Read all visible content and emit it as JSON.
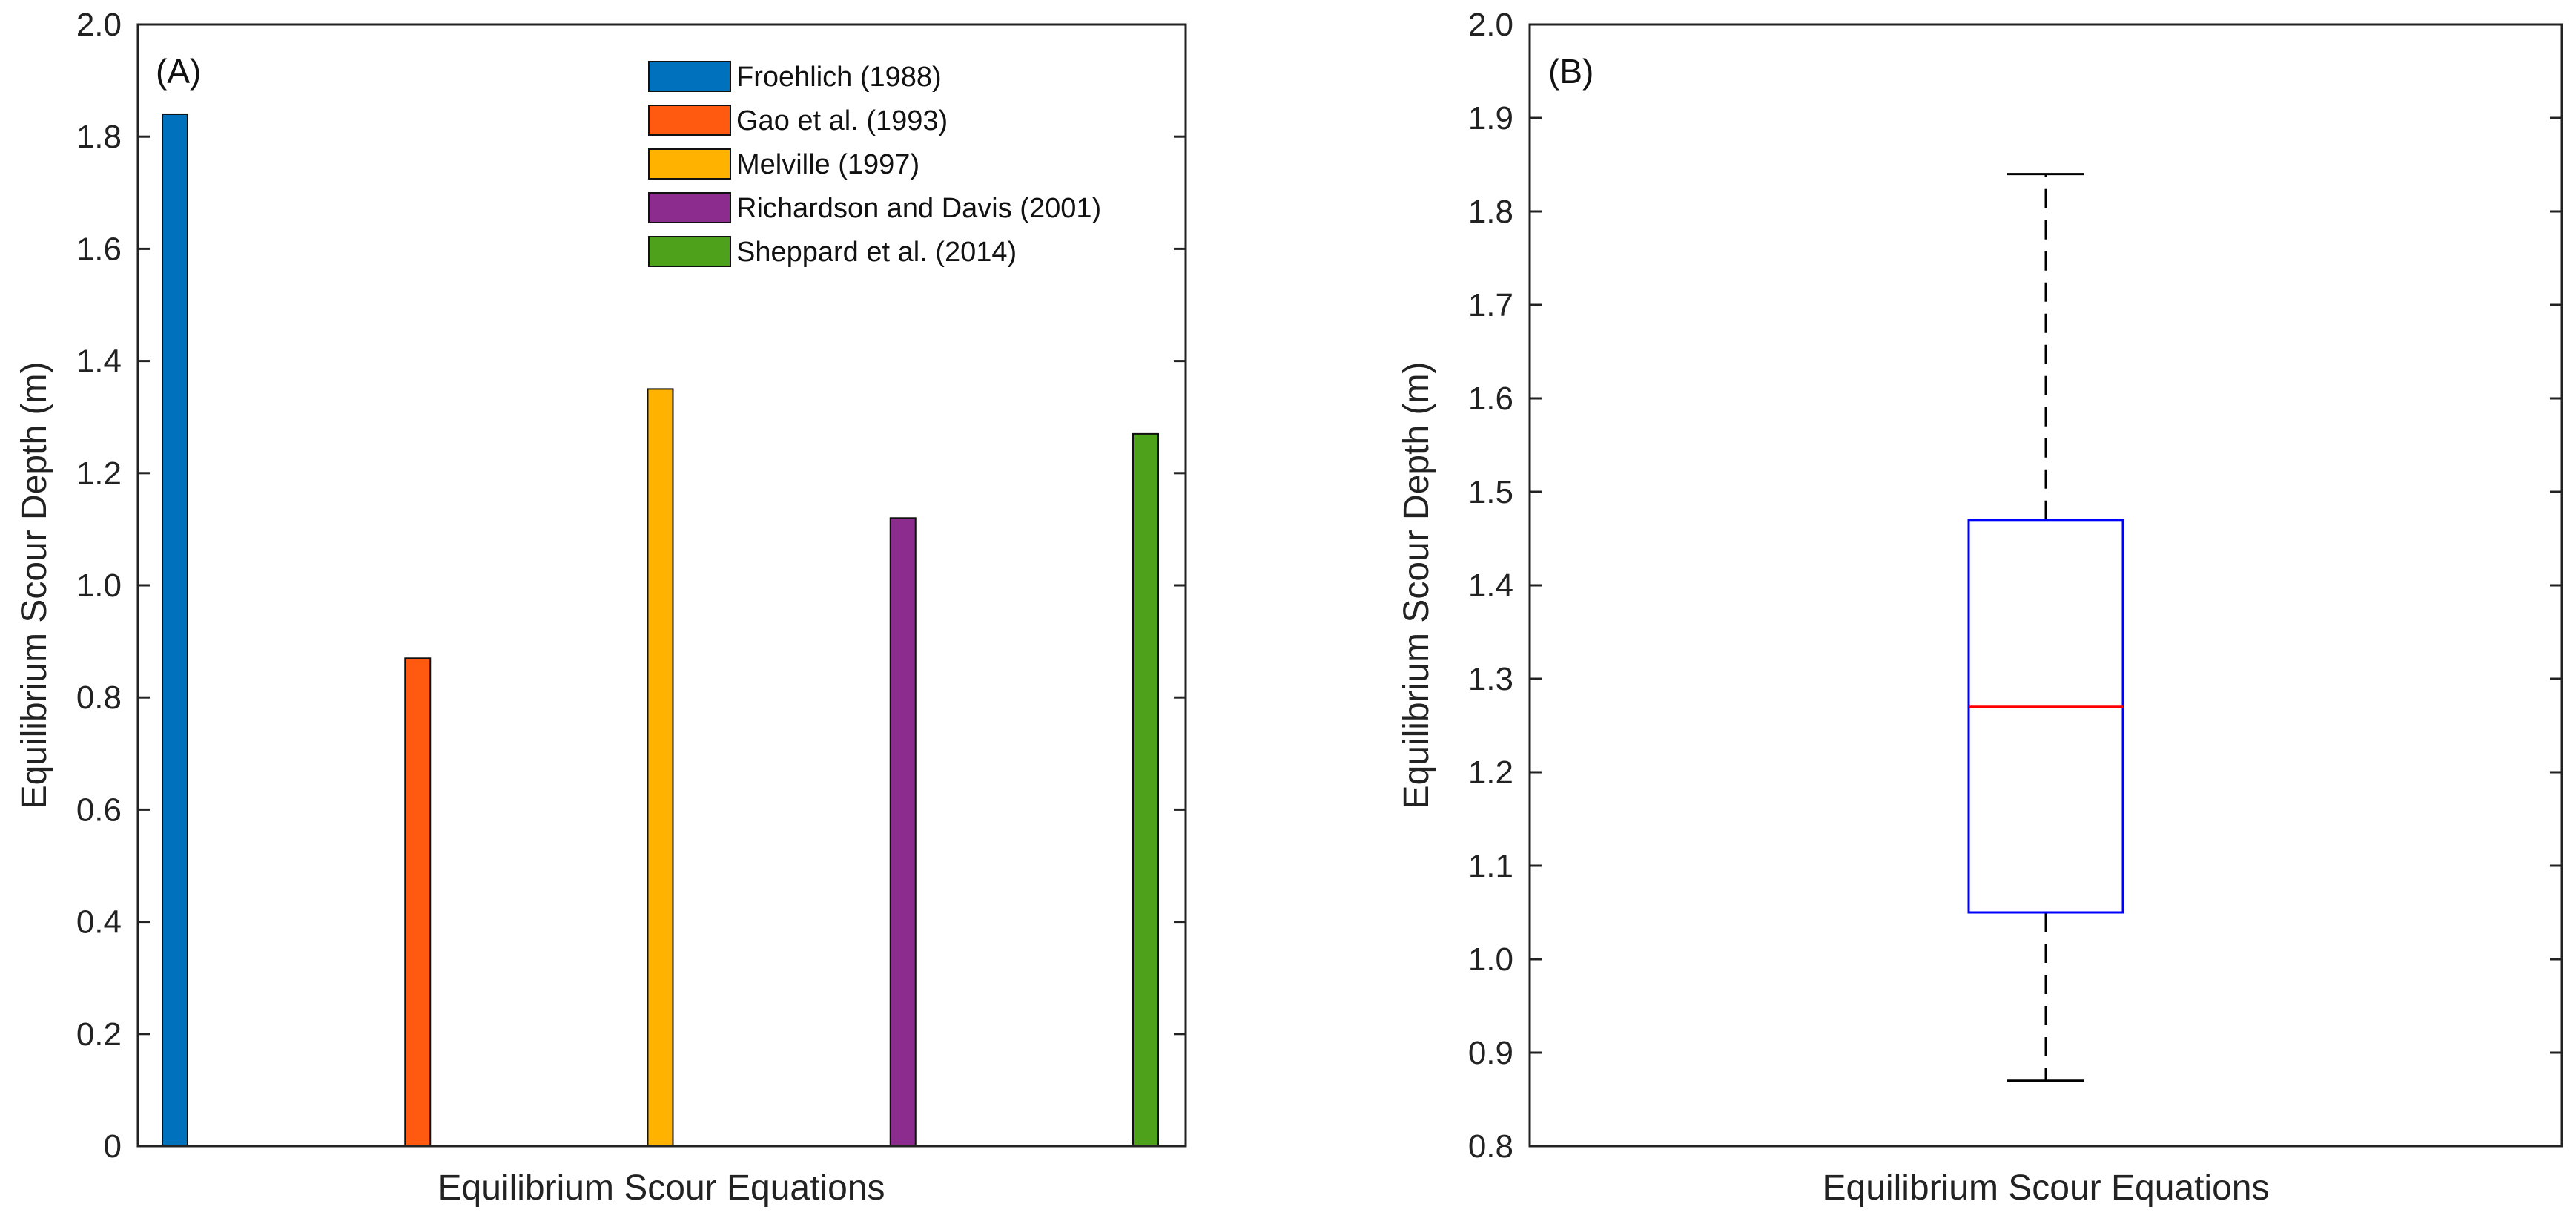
{
  "chart_data": [
    {
      "type": "bar",
      "panel_label": "(A)",
      "xlabel": "Equilibrium Scour Equations",
      "ylabel": "Equilibrium Scour Depth (m)",
      "ylim": [
        0,
        2.0
      ],
      "yticks": [
        0,
        0.2,
        0.4,
        0.6,
        0.8,
        1.0,
        1.2,
        1.4,
        1.6,
        1.8,
        2.0
      ],
      "ytick_labels": [
        "0",
        "0.2",
        "0.4",
        "0.6",
        "0.8",
        "1.0",
        "1.2",
        "1.4",
        "1.6",
        "1.8",
        "2.0"
      ],
      "grid": false,
      "legend_position": "top-center",
      "series": [
        {
          "name": "Froehlich (1988)",
          "value": 1.84,
          "color": "#0072BD"
        },
        {
          "name": "Gao et al. (1993)",
          "value": 0.87,
          "color": "#FF5A0F"
        },
        {
          "name": "Melville (1997)",
          "value": 1.35,
          "color": "#FFB300"
        },
        {
          "name": "Richardson and Davis (2001)",
          "value": 1.12,
          "color": "#8B2C8E"
        },
        {
          "name": "Sheppard et al. (2014)",
          "value": 1.27,
          "color": "#4EA21B"
        }
      ]
    },
    {
      "type": "box",
      "panel_label": "(B)",
      "xlabel": "Equilibrium Scour Equations",
      "ylabel": "Equilibrium Scour Depth (m)",
      "ylim": [
        0.8,
        2.0
      ],
      "yticks": [
        0.8,
        0.9,
        1.0,
        1.1,
        1.2,
        1.3,
        1.4,
        1.5,
        1.6,
        1.7,
        1.8,
        1.9,
        2.0
      ],
      "ytick_labels": [
        "0.8",
        "0.9",
        "1.0",
        "1.1",
        "1.2",
        "1.3",
        "1.4",
        "1.5",
        "1.6",
        "1.7",
        "1.8",
        "1.9",
        "2.0"
      ],
      "grid": false,
      "box": {
        "min": 0.87,
        "q1": 1.05,
        "median": 1.27,
        "q3": 1.47,
        "max": 1.84
      },
      "box_color": "#0000FF",
      "median_color": "#FF0000",
      "whisker_color": "#000000"
    }
  ]
}
